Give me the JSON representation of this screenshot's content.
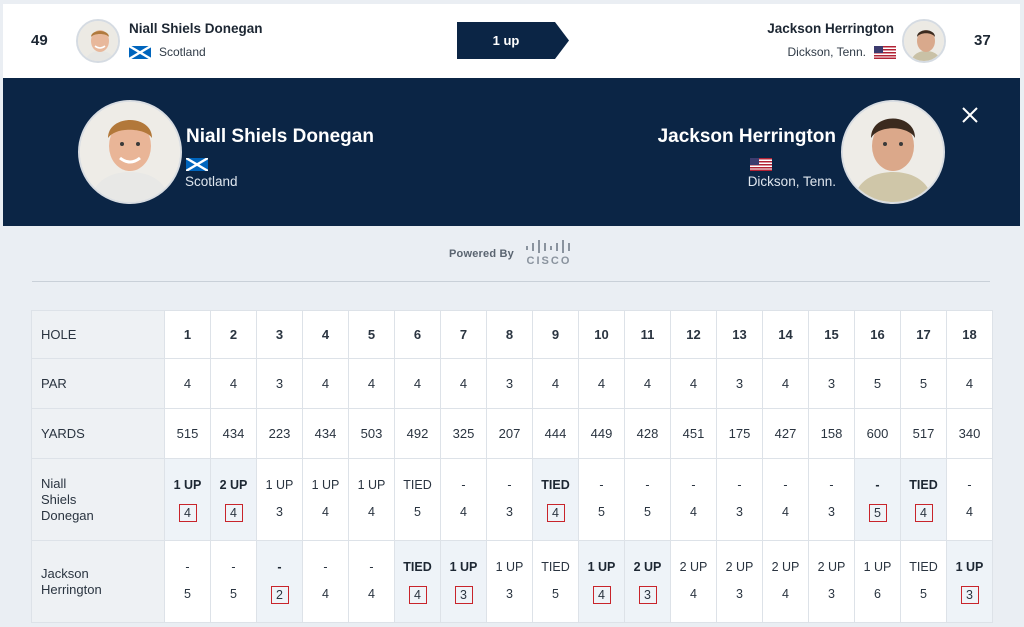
{
  "topbar": {
    "left": {
      "score": "49",
      "name": "Niall Shiels Donegan",
      "location": "Scotland"
    },
    "right": {
      "score": "37",
      "name": "Jackson Herrington",
      "location": "Dickson, Tenn."
    },
    "status": "1 up"
  },
  "header": {
    "left": {
      "name": "Niall Shiels Donegan",
      "location": "Scotland"
    },
    "right": {
      "name": "Jackson Herrington",
      "location": "Dickson, Tenn."
    }
  },
  "powered_by": {
    "label": "Powered By",
    "brand": "CISCO"
  },
  "scorecard": {
    "row_labels": {
      "hole": "HOLE",
      "par": "PAR",
      "yards": "YARDS"
    },
    "holes": [
      "1",
      "2",
      "3",
      "4",
      "5",
      "6",
      "7",
      "8",
      "9",
      "10",
      "11",
      "12",
      "13",
      "14",
      "15",
      "16",
      "17",
      "18"
    ],
    "par": [
      "4",
      "4",
      "3",
      "4",
      "4",
      "4",
      "4",
      "3",
      "4",
      "4",
      "4",
      "4",
      "3",
      "4",
      "3",
      "5",
      "5",
      "4"
    ],
    "yards": [
      "515",
      "434",
      "223",
      "434",
      "503",
      "492",
      "325",
      "207",
      "444",
      "449",
      "428",
      "451",
      "175",
      "427",
      "158",
      "600",
      "517",
      "340"
    ],
    "player1": {
      "name_lines": [
        "Niall",
        "Shiels",
        "Donegan"
      ],
      "status": [
        "1 UP",
        "2 UP",
        "1 UP",
        "1 UP",
        "1 UP",
        "TIED",
        "-",
        "-",
        "TIED",
        "-",
        "-",
        "-",
        "-",
        "-",
        "-",
        "-",
        "TIED",
        "-"
      ],
      "scores": [
        "4",
        "4",
        "3",
        "4",
        "4",
        "5",
        "4",
        "3",
        "4",
        "5",
        "5",
        "4",
        "3",
        "4",
        "3",
        "5",
        "4",
        "4"
      ],
      "boxed": [
        true,
        true,
        false,
        false,
        false,
        false,
        false,
        false,
        true,
        false,
        false,
        false,
        false,
        false,
        false,
        true,
        true,
        false
      ],
      "bold_status": [
        true,
        true,
        false,
        false,
        false,
        false,
        false,
        false,
        true,
        false,
        false,
        false,
        false,
        false,
        false,
        true,
        true,
        false
      ]
    },
    "player2": {
      "name_lines": [
        "Jackson",
        "Herrington"
      ],
      "status": [
        "-",
        "-",
        "-",
        "-",
        "-",
        "TIED",
        "1 UP",
        "1 UP",
        "TIED",
        "1 UP",
        "2 UP",
        "2 UP",
        "2 UP",
        "2 UP",
        "2 UP",
        "1 UP",
        "TIED",
        "1 UP"
      ],
      "scores": [
        "5",
        "5",
        "2",
        "4",
        "4",
        "4",
        "3",
        "3",
        "5",
        "4",
        "3",
        "4",
        "3",
        "4",
        "3",
        "6",
        "5",
        "3"
      ],
      "boxed": [
        false,
        false,
        true,
        false,
        false,
        true,
        true,
        false,
        false,
        true,
        true,
        false,
        false,
        false,
        false,
        false,
        false,
        true
      ],
      "bold_status": [
        false,
        false,
        true,
        false,
        false,
        true,
        true,
        false,
        false,
        true,
        true,
        false,
        false,
        false,
        false,
        false,
        false,
        true
      ]
    }
  },
  "colors": {
    "navy": "#0b2545",
    "win_box": "#c8242b",
    "table_header_bg": "#eef1f4"
  }
}
